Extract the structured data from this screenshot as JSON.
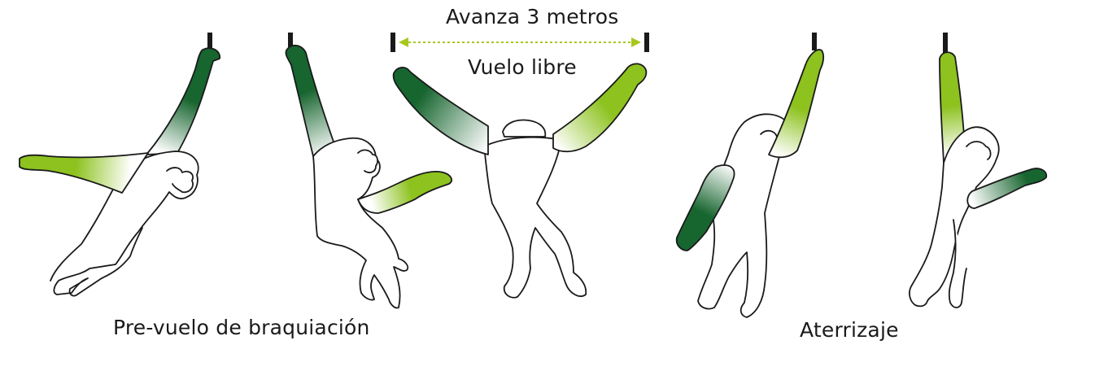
{
  "labels": {
    "distance": "Avanza 3 metros",
    "free_flight": "Vuelo libre",
    "pre_flight": "Pre-vuelo de braquiación",
    "landing": "Aterrizaje"
  },
  "colors": {
    "dark_green": "#17652f",
    "light_green": "#8dc21f",
    "arrow_green": "#a6c81e",
    "outline": "#1a1a1a",
    "bar": "#1a1a1a"
  },
  "figures": [
    "gibbon-pre-flight-reach",
    "gibbon-pre-flight-swing",
    "gibbon-free-flight",
    "gibbon-landing-grab",
    "gibbon-landing-hang"
  ]
}
